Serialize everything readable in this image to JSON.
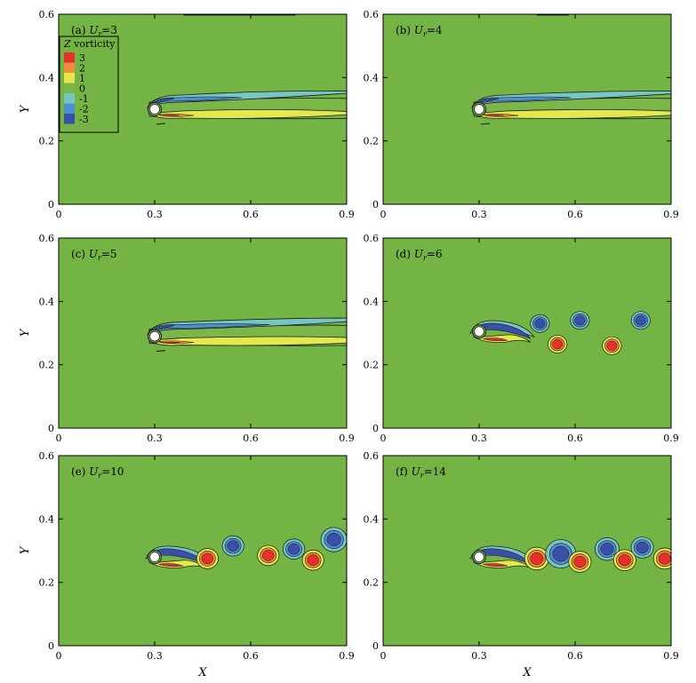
{
  "figure": {
    "xlabel": "X",
    "ylabel": "Y"
  },
  "legend": {
    "title_var": "Z",
    "title_rest": " vorticity",
    "items": [
      {
        "label": "3",
        "color": "#e8302a"
      },
      {
        "label": "2",
        "color": "#f08c3a"
      },
      {
        "label": "1",
        "color": "#e3e84f"
      },
      {
        "label": "0",
        "color": "#7ab648"
      },
      {
        "label": "-1",
        "color": "#78c6c4"
      },
      {
        "label": "-2",
        "color": "#4f8fcf"
      },
      {
        "label": "-3",
        "color": "#3a4fa8"
      }
    ]
  },
  "colors": {
    "background": "#73b444",
    "cylinder": "#ffffff",
    "contour": "#1a1a1a"
  },
  "chart_data": [
    {
      "type": "heatmap",
      "panel": "a",
      "label_prefix": "(a) ",
      "label_var": "U",
      "label_sub": "r",
      "label_value": "=3",
      "xlabel": "",
      "ylabel": "Y",
      "xlim": [
        0,
        0.9
      ],
      "ylim": [
        0,
        0.6
      ],
      "x_ticks": [
        "0",
        "0.3",
        "0.6",
        "0.9"
      ],
      "y_ticks": [
        "0",
        "0.2",
        "0.4",
        "0.6"
      ],
      "cylinder": {
        "x": 0.3,
        "y": 0.3
      },
      "wake": "steady",
      "wake_length": 0.68
    },
    {
      "type": "heatmap",
      "panel": "b",
      "label_prefix": "(b) ",
      "label_var": "U",
      "label_sub": "r",
      "label_value": "=4",
      "xlabel": "",
      "ylabel": "",
      "xlim": [
        0,
        0.9
      ],
      "ylim": [
        0,
        0.6
      ],
      "x_ticks": [
        "0",
        "0.3",
        "0.6",
        "0.9"
      ],
      "y_ticks": [
        "0",
        "0.2",
        "0.4",
        "0.6"
      ],
      "cylinder": {
        "x": 0.3,
        "y": 0.3
      },
      "wake": "steady",
      "wake_length": 0.72
    },
    {
      "type": "heatmap",
      "panel": "c",
      "label_prefix": "(c) ",
      "label_var": "U",
      "label_sub": "r",
      "label_value": "=5",
      "xlabel": "",
      "ylabel": "Y",
      "xlim": [
        0,
        0.9
      ],
      "ylim": [
        0,
        0.6
      ],
      "x_ticks": [
        "0",
        "0.3",
        "0.6",
        "0.9"
      ],
      "y_ticks": [
        "0",
        "0.2",
        "0.4",
        "0.6"
      ],
      "cylinder": {
        "x": 0.3,
        "y": 0.29
      },
      "wake": "steady",
      "wake_length": 0.9
    },
    {
      "type": "heatmap",
      "panel": "d",
      "label_prefix": "(d) ",
      "label_var": "U",
      "label_sub": "r",
      "label_value": "=6",
      "xlabel": "",
      "ylabel": "",
      "xlim": [
        0,
        0.9
      ],
      "ylim": [
        0,
        0.6
      ],
      "x_ticks": [
        "0",
        "0.3",
        "0.6",
        "0.9"
      ],
      "y_ticks": [
        "0",
        "0.2",
        "0.4",
        "0.6"
      ],
      "cylinder": {
        "x": 0.3,
        "y": 0.305
      },
      "wake": "shedding",
      "vortices": [
        {
          "x": 0.49,
          "y": 0.33,
          "sign": -1,
          "r": 0.022
        },
        {
          "x": 0.545,
          "y": 0.265,
          "sign": 1,
          "r": 0.022
        },
        {
          "x": 0.615,
          "y": 0.34,
          "sign": -1,
          "r": 0.022
        },
        {
          "x": 0.715,
          "y": 0.26,
          "sign": 1,
          "r": 0.022
        },
        {
          "x": 0.805,
          "y": 0.34,
          "sign": -1,
          "r": 0.022
        }
      ]
    },
    {
      "type": "heatmap",
      "panel": "e",
      "label_prefix": "(e) ",
      "label_var": "U",
      "label_sub": "r",
      "label_value": "=10",
      "xlabel": "X",
      "ylabel": "Y",
      "xlim": [
        0,
        0.9
      ],
      "ylim": [
        0,
        0.6
      ],
      "x_ticks": [
        "0",
        "0.3",
        "0.6",
        "0.9"
      ],
      "y_ticks": [
        "0",
        "0.2",
        "0.4",
        "0.6"
      ],
      "cylinder": {
        "x": 0.3,
        "y": 0.28
      },
      "wake": "shedding",
      "vortices": [
        {
          "x": 0.465,
          "y": 0.275,
          "sign": 1,
          "r": 0.025
        },
        {
          "x": 0.545,
          "y": 0.315,
          "sign": -1,
          "r": 0.025
        },
        {
          "x": 0.655,
          "y": 0.285,
          "sign": 1,
          "r": 0.025
        },
        {
          "x": 0.735,
          "y": 0.305,
          "sign": -1,
          "r": 0.025
        },
        {
          "x": 0.795,
          "y": 0.27,
          "sign": 1,
          "r": 0.025
        },
        {
          "x": 0.86,
          "y": 0.335,
          "sign": -1,
          "r": 0.03
        }
      ]
    },
    {
      "type": "heatmap",
      "panel": "f",
      "label_prefix": "(f) ",
      "label_var": "U",
      "label_sub": "r",
      "label_value": "=14",
      "xlabel": "X",
      "ylabel": "",
      "xlim": [
        0,
        0.9
      ],
      "ylim": [
        0,
        0.6
      ],
      "x_ticks": [
        "0",
        "0.3",
        "0.6",
        "0.9"
      ],
      "y_ticks": [
        "0",
        "0.2",
        "0.4",
        "0.6"
      ],
      "cylinder": {
        "x": 0.3,
        "y": 0.28
      },
      "wake": "shedding",
      "vortices": [
        {
          "x": 0.48,
          "y": 0.275,
          "sign": 1,
          "r": 0.028
        },
        {
          "x": 0.555,
          "y": 0.29,
          "sign": -1,
          "r": 0.035
        },
        {
          "x": 0.615,
          "y": 0.265,
          "sign": 1,
          "r": 0.026
        },
        {
          "x": 0.7,
          "y": 0.305,
          "sign": -1,
          "r": 0.028
        },
        {
          "x": 0.755,
          "y": 0.27,
          "sign": 1,
          "r": 0.026
        },
        {
          "x": 0.81,
          "y": 0.31,
          "sign": -1,
          "r": 0.026
        },
        {
          "x": 0.88,
          "y": 0.275,
          "sign": 1,
          "r": 0.026
        }
      ]
    }
  ]
}
